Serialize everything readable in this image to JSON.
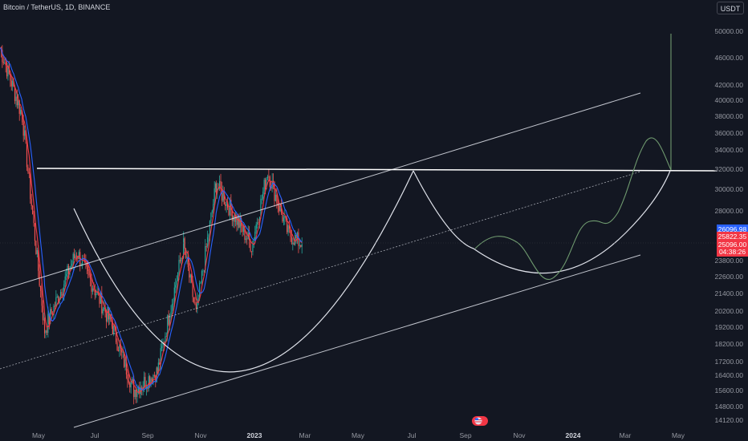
{
  "header": {
    "symbol_line": "Bitcoin / TetherUS, 1D, BINANCE"
  },
  "currency_button": "USDT",
  "colors": {
    "background": "#131722",
    "candle_up": "#26a69a",
    "candle_down": "#ef5350",
    "ma_red": "#f23645",
    "ma_blue": "#2962ff",
    "drawing": "#e0e3eb",
    "projection": "#6f9a6f",
    "tag_blue": "#2962ff",
    "tag_red": "#f23645"
  },
  "y_axis_labels": [
    "50000.00",
    "46000.00",
    "42000.00",
    "40000.00",
    "38000.00",
    "36000.00",
    "34000.00",
    "32000.00",
    "30000.00",
    "28000.00",
    "23800.00",
    "22600.00",
    "21400.00",
    "20200.00",
    "19200.00",
    "18200.00",
    "17200.00",
    "16400.00",
    "15600.00",
    "14800.00",
    "14120.00"
  ],
  "price_tags": [
    {
      "label": "26096.98",
      "color": "blue"
    },
    {
      "label": "25822.35",
      "color": "red"
    },
    {
      "label": "25096.00",
      "color": "red"
    },
    {
      "label": "04:38:26",
      "color": "red"
    }
  ],
  "x_axis_labels": [
    {
      "label": "May",
      "bold": false
    },
    {
      "label": "Jul",
      "bold": false
    },
    {
      "label": "Sep",
      "bold": false
    },
    {
      "label": "Nov",
      "bold": false
    },
    {
      "label": "2023",
      "bold": true
    },
    {
      "label": "Mar",
      "bold": false
    },
    {
      "label": "May",
      "bold": false
    },
    {
      "label": "Jul",
      "bold": false
    },
    {
      "label": "Sep",
      "bold": false
    },
    {
      "label": "Nov",
      "bold": false
    },
    {
      "label": "2024",
      "bold": true
    },
    {
      "label": "Mar",
      "bold": false
    },
    {
      "label": "May",
      "bold": false
    }
  ],
  "events_icon": "us-flag-icon",
  "chart_data": {
    "type": "candlestick",
    "title": "Bitcoin / TetherUS, 1D, BINANCE",
    "ylim": [
      14120,
      50000
    ],
    "scale": "log",
    "key_prices": [
      {
        "date": "2022-04-01",
        "price": 47500
      },
      {
        "date": "2022-05-10",
        "price": 38000
      },
      {
        "date": "2022-06-18",
        "price": 19000
      },
      {
        "date": "2022-08-13",
        "price": 24500
      },
      {
        "date": "2022-10-15",
        "price": 19200
      },
      {
        "date": "2022-11-21",
        "price": 15600
      },
      {
        "date": "2023-01-01",
        "price": 16600
      },
      {
        "date": "2023-02-16",
        "price": 25000
      },
      {
        "date": "2023-03-10",
        "price": 20000
      },
      {
        "date": "2023-04-14",
        "price": 30500
      },
      {
        "date": "2023-06-15",
        "price": 25000
      },
      {
        "date": "2023-07-13",
        "price": 31800
      },
      {
        "date": "2023-08-18",
        "price": 26000
      },
      {
        "date": "2023-09-11",
        "price": 25096
      }
    ],
    "horizontal_level": 31800,
    "moving_averages": [
      "red",
      "blue"
    ],
    "drawings": [
      "ascending channel (upper, middle dashed, lower)",
      "cup arcs",
      "projected path to ~34000 then vertical target 50000"
    ]
  }
}
